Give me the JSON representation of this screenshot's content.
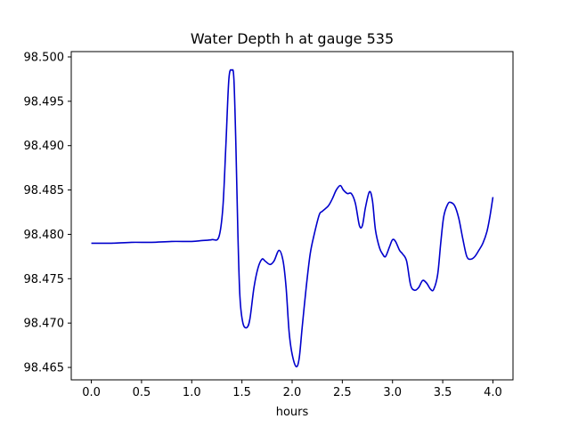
{
  "chart_data": {
    "type": "line",
    "title": "Water Depth h at gauge 535",
    "xlabel": "hours",
    "ylabel": "",
    "xlim": [
      -0.2,
      4.2
    ],
    "ylim": [
      98.4636,
      98.5006
    ],
    "grid": false,
    "x_ticks": [
      "0.0",
      "0.5",
      "1.0",
      "1.5",
      "2.0",
      "2.5",
      "3.0",
      "3.5",
      "4.0"
    ],
    "y_ticks": [
      "98.465",
      "98.470",
      "98.475",
      "98.480",
      "98.485",
      "98.490",
      "98.495",
      "98.500"
    ],
    "series": [
      {
        "color": "#0000cc",
        "x": [
          0.0,
          0.2,
          0.4,
          0.6,
          0.8,
          1.0,
          1.1,
          1.2,
          1.27,
          1.31,
          1.34,
          1.37,
          1.4,
          1.42,
          1.44,
          1.46,
          1.48,
          1.51,
          1.55,
          1.58,
          1.62,
          1.66,
          1.7,
          1.73,
          1.78,
          1.82,
          1.87,
          1.91,
          1.94,
          1.97,
          2.0,
          2.04,
          2.07,
          2.1,
          2.14,
          2.18,
          2.22,
          2.27,
          2.3,
          2.36,
          2.4,
          2.44,
          2.48,
          2.51,
          2.55,
          2.59,
          2.63,
          2.67,
          2.7,
          2.73,
          2.77,
          2.8,
          2.83,
          2.87,
          2.9,
          2.93,
          2.97,
          3.0,
          3.03,
          3.07,
          3.1,
          3.14,
          3.18,
          3.22,
          3.26,
          3.3,
          3.34,
          3.38,
          3.41,
          3.45,
          3.48,
          3.51,
          3.55,
          3.58,
          3.62,
          3.66,
          3.7,
          3.74,
          3.78,
          3.82,
          3.86,
          3.9,
          3.94,
          3.97,
          4.0
        ],
        "y": [
          98.479,
          98.479,
          98.4791,
          98.4791,
          98.4792,
          98.4792,
          98.4793,
          98.4794,
          98.4797,
          98.483,
          98.49,
          98.4975,
          98.4985,
          98.4975,
          98.49,
          98.48,
          98.473,
          98.47,
          98.4695,
          98.4705,
          98.474,
          98.4762,
          98.4772,
          98.477,
          98.4766,
          98.477,
          98.4782,
          98.477,
          98.474,
          98.469,
          98.4665,
          98.4651,
          98.466,
          98.4695,
          98.474,
          98.4778,
          98.48,
          98.4822,
          98.4826,
          98.4832,
          98.484,
          98.485,
          98.4855,
          98.485,
          98.4846,
          98.4846,
          98.4835,
          98.481,
          98.481,
          98.483,
          98.4848,
          98.4838,
          98.4805,
          98.4785,
          98.4778,
          98.4775,
          98.4786,
          98.4794,
          98.4792,
          98.4782,
          98.4778,
          98.477,
          98.4743,
          98.4737,
          98.474,
          98.4748,
          98.4745,
          98.4738,
          98.4738,
          98.4755,
          98.479,
          98.482,
          98.4834,
          98.4836,
          98.4832,
          98.4818,
          98.4795,
          98.4775,
          98.4772,
          98.4775,
          98.4782,
          98.479,
          98.4803,
          98.482,
          98.4842
        ]
      }
    ]
  }
}
